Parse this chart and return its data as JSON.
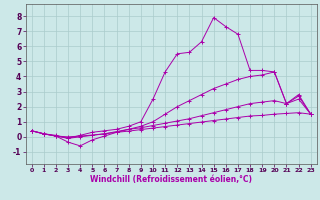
{
  "xlabel": "Windchill (Refroidissement éolien,°C)",
  "background_color": "#cce8e8",
  "grid_color": "#aacccc",
  "line_color": "#aa00aa",
  "xlim": [
    -0.5,
    23.5
  ],
  "ylim": [
    -1.8,
    8.8
  ],
  "xticks": [
    0,
    1,
    2,
    3,
    4,
    5,
    6,
    7,
    8,
    9,
    10,
    11,
    12,
    13,
    14,
    15,
    16,
    17,
    18,
    19,
    20,
    21,
    22,
    23
  ],
  "yticks": [
    -1,
    0,
    1,
    2,
    3,
    4,
    5,
    6,
    7,
    8
  ],
  "lines": [
    {
      "x": [
        0,
        1,
        2,
        3,
        4,
        5,
        6,
        7,
        8,
        9,
        10,
        11,
        12,
        13,
        14,
        15,
        16,
        17,
        18,
        19,
        20,
        21,
        22,
        23
      ],
      "y": [
        0.4,
        0.2,
        0.1,
        -0.1,
        0.1,
        0.3,
        0.4,
        0.5,
        0.7,
        1.0,
        2.5,
        4.3,
        5.5,
        5.6,
        6.3,
        7.9,
        7.3,
        6.8,
        4.4,
        4.4,
        4.3,
        2.2,
        2.7,
        1.5
      ]
    },
    {
      "x": [
        0,
        1,
        2,
        3,
        4,
        5,
        6,
        7,
        8,
        9,
        10,
        11,
        12,
        13,
        14,
        15,
        16,
        17,
        18,
        19,
        20,
        21,
        22,
        23
      ],
      "y": [
        0.4,
        0.2,
        0.05,
        -0.35,
        -0.6,
        -0.2,
        0.05,
        0.3,
        0.5,
        0.7,
        1.0,
        1.5,
        2.0,
        2.4,
        2.8,
        3.2,
        3.5,
        3.8,
        4.0,
        4.1,
        4.3,
        2.2,
        2.5,
        1.5
      ]
    },
    {
      "x": [
        0,
        1,
        2,
        3,
        4,
        5,
        6,
        7,
        8,
        9,
        10,
        11,
        12,
        13,
        14,
        15,
        16,
        17,
        18,
        19,
        20,
        21,
        22,
        23
      ],
      "y": [
        0.4,
        0.2,
        0.05,
        -0.1,
        0.0,
        0.1,
        0.2,
        0.35,
        0.5,
        0.6,
        0.75,
        0.9,
        1.05,
        1.2,
        1.4,
        1.6,
        1.8,
        2.0,
        2.2,
        2.3,
        2.4,
        2.2,
        2.8,
        1.5
      ]
    },
    {
      "x": [
        0,
        1,
        2,
        3,
        4,
        5,
        6,
        7,
        8,
        9,
        10,
        11,
        12,
        13,
        14,
        15,
        16,
        17,
        18,
        19,
        20,
        21,
        22,
        23
      ],
      "y": [
        0.4,
        0.2,
        0.05,
        0.0,
        0.05,
        0.12,
        0.2,
        0.3,
        0.38,
        0.48,
        0.58,
        0.68,
        0.78,
        0.88,
        0.98,
        1.08,
        1.18,
        1.28,
        1.38,
        1.42,
        1.5,
        1.55,
        1.6,
        1.5
      ]
    }
  ]
}
